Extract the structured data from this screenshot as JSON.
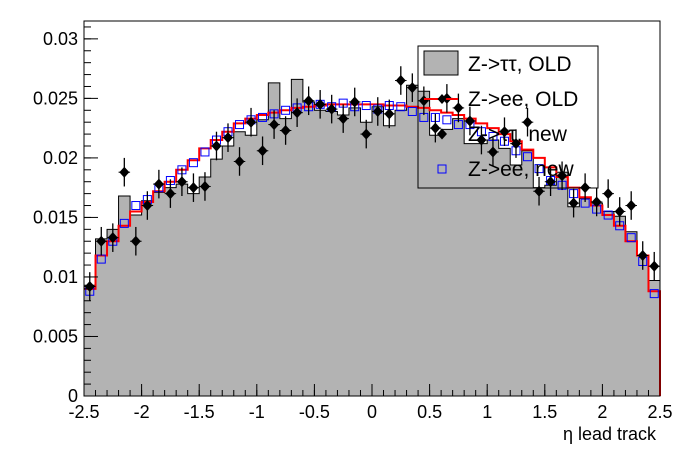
{
  "chart_data": {
    "type": "histogram",
    "xlabel": "η lead track",
    "ylabel": "",
    "xlim": [
      -2.5,
      2.5
    ],
    "ylim": [
      0,
      0.0315
    ],
    "x_ticks": [
      -2.5,
      -2,
      -1.5,
      -1,
      -0.5,
      0,
      0.5,
      1,
      1.5,
      2,
      2.5
    ],
    "x_tick_labels": [
      "-2.5",
      "-2",
      "-1.5",
      "-1",
      "-0.5",
      "0",
      "0.5",
      "1",
      "1.5",
      "2",
      "2.5"
    ],
    "y_ticks": [
      0,
      0.005,
      0.01,
      0.015,
      0.02,
      0.025,
      0.03
    ],
    "y_tick_labels": [
      "0",
      "0.005",
      "0.01",
      "0.015",
      "0.02",
      "0.025",
      "0.03"
    ],
    "bin_width": 0.1,
    "bin_low_edges": [
      -2.5,
      -2.4,
      -2.3,
      -2.2,
      -2.1,
      -2.0,
      -1.9,
      -1.8,
      -1.7,
      -1.6,
      -1.5,
      -1.4,
      -1.3,
      -1.2,
      -1.1,
      -1.0,
      -0.9,
      -0.8,
      -0.7,
      -0.6,
      -0.5,
      -0.4,
      -0.3,
      -0.2,
      -0.1,
      0.0,
      0.1,
      0.2,
      0.3,
      0.4,
      0.5,
      0.6,
      0.7,
      0.8,
      0.9,
      1.0,
      1.1,
      1.2,
      1.3,
      1.4,
      1.5,
      1.6,
      1.7,
      1.8,
      1.9,
      2.0,
      2.1,
      2.2,
      2.3,
      2.4
    ],
    "legend_position": "top-right",
    "series": [
      {
        "name": "Z->ττ, OLD",
        "style": "filled-histogram",
        "fill_color": "#b3b3b3",
        "line_color": "#000000",
        "values": [
          0.0093,
          0.0132,
          0.014,
          0.0168,
          0.0152,
          0.0164,
          0.0171,
          0.0175,
          0.0178,
          0.017,
          0.0184,
          0.0199,
          0.021,
          0.0222,
          0.0219,
          0.0232,
          0.0263,
          0.0233,
          0.0266,
          0.0247,
          0.024,
          0.0239,
          0.0236,
          0.0242,
          0.023,
          0.0243,
          0.0227,
          0.024,
          0.0261,
          0.0256,
          0.0219,
          0.0224,
          0.0233,
          0.0212,
          0.0212,
          0.0215,
          0.0208,
          0.0194,
          0.0206,
          0.0175,
          0.0177,
          0.0188,
          0.0159,
          0.0166,
          0.0162,
          0.0155,
          0.0151,
          0.0138,
          0.0118,
          0.0097
        ]
      },
      {
        "name": "Z->ee, OLD",
        "style": "line-histogram",
        "line_color": "#ff0000",
        "values": [
          0.009,
          0.0118,
          0.013,
          0.0143,
          0.0155,
          0.0163,
          0.0172,
          0.018,
          0.019,
          0.0198,
          0.0208,
          0.0215,
          0.0222,
          0.0229,
          0.0233,
          0.0236,
          0.0238,
          0.024,
          0.0242,
          0.0243,
          0.0244,
          0.0245,
          0.0245,
          0.0245,
          0.0245,
          0.0245,
          0.0244,
          0.0244,
          0.0243,
          0.0242,
          0.024,
          0.0238,
          0.0236,
          0.0233,
          0.0229,
          0.0225,
          0.022,
          0.0214,
          0.0207,
          0.02,
          0.0192,
          0.0184,
          0.0175,
          0.0167,
          0.016,
          0.0152,
          0.0143,
          0.013,
          0.0118,
          0.0088
        ]
      },
      {
        "name": "Z->ττ, new",
        "style": "markers-with-errors",
        "marker_color": "#000000",
        "values": [
          0.0092,
          0.013,
          0.0133,
          0.0188,
          0.013,
          0.016,
          0.0178,
          0.017,
          0.018,
          0.0175,
          0.0176,
          0.021,
          0.0217,
          0.0197,
          0.023,
          0.0206,
          0.0228,
          0.0223,
          0.0238,
          0.0248,
          0.0245,
          0.0241,
          0.0233,
          0.0247,
          0.022,
          0.0239,
          0.0237,
          0.0265,
          0.0259,
          0.0248,
          0.0225,
          0.025,
          0.0242,
          0.0231,
          0.0215,
          0.0205,
          0.0222,
          0.0212,
          0.023,
          0.0172,
          0.018,
          0.0185,
          0.0162,
          0.0175,
          0.0163,
          0.017,
          0.0155,
          0.016,
          0.0118,
          0.0109
        ],
        "error": 0.0012
      },
      {
        "name": "Z->ee, new",
        "style": "open-square-markers",
        "marker_color": "#0000ff",
        "values": [
          0.0088,
          0.0115,
          0.013,
          0.0145,
          0.016,
          0.0165,
          0.0175,
          0.0181,
          0.019,
          0.0196,
          0.0205,
          0.0215,
          0.0222,
          0.0228,
          0.0232,
          0.0234,
          0.0237,
          0.024,
          0.0242,
          0.0243,
          0.0245,
          0.0243,
          0.0246,
          0.0243,
          0.0244,
          0.0241,
          0.0244,
          0.0243,
          0.0239,
          0.0234,
          0.0234,
          0.0232,
          0.0228,
          0.0228,
          0.0222,
          0.0218,
          0.0214,
          0.0206,
          0.0201,
          0.0191,
          0.0181,
          0.0177,
          0.017,
          0.0162,
          0.0157,
          0.0152,
          0.0143,
          0.0133,
          0.0113,
          0.0086
        ]
      }
    ]
  }
}
